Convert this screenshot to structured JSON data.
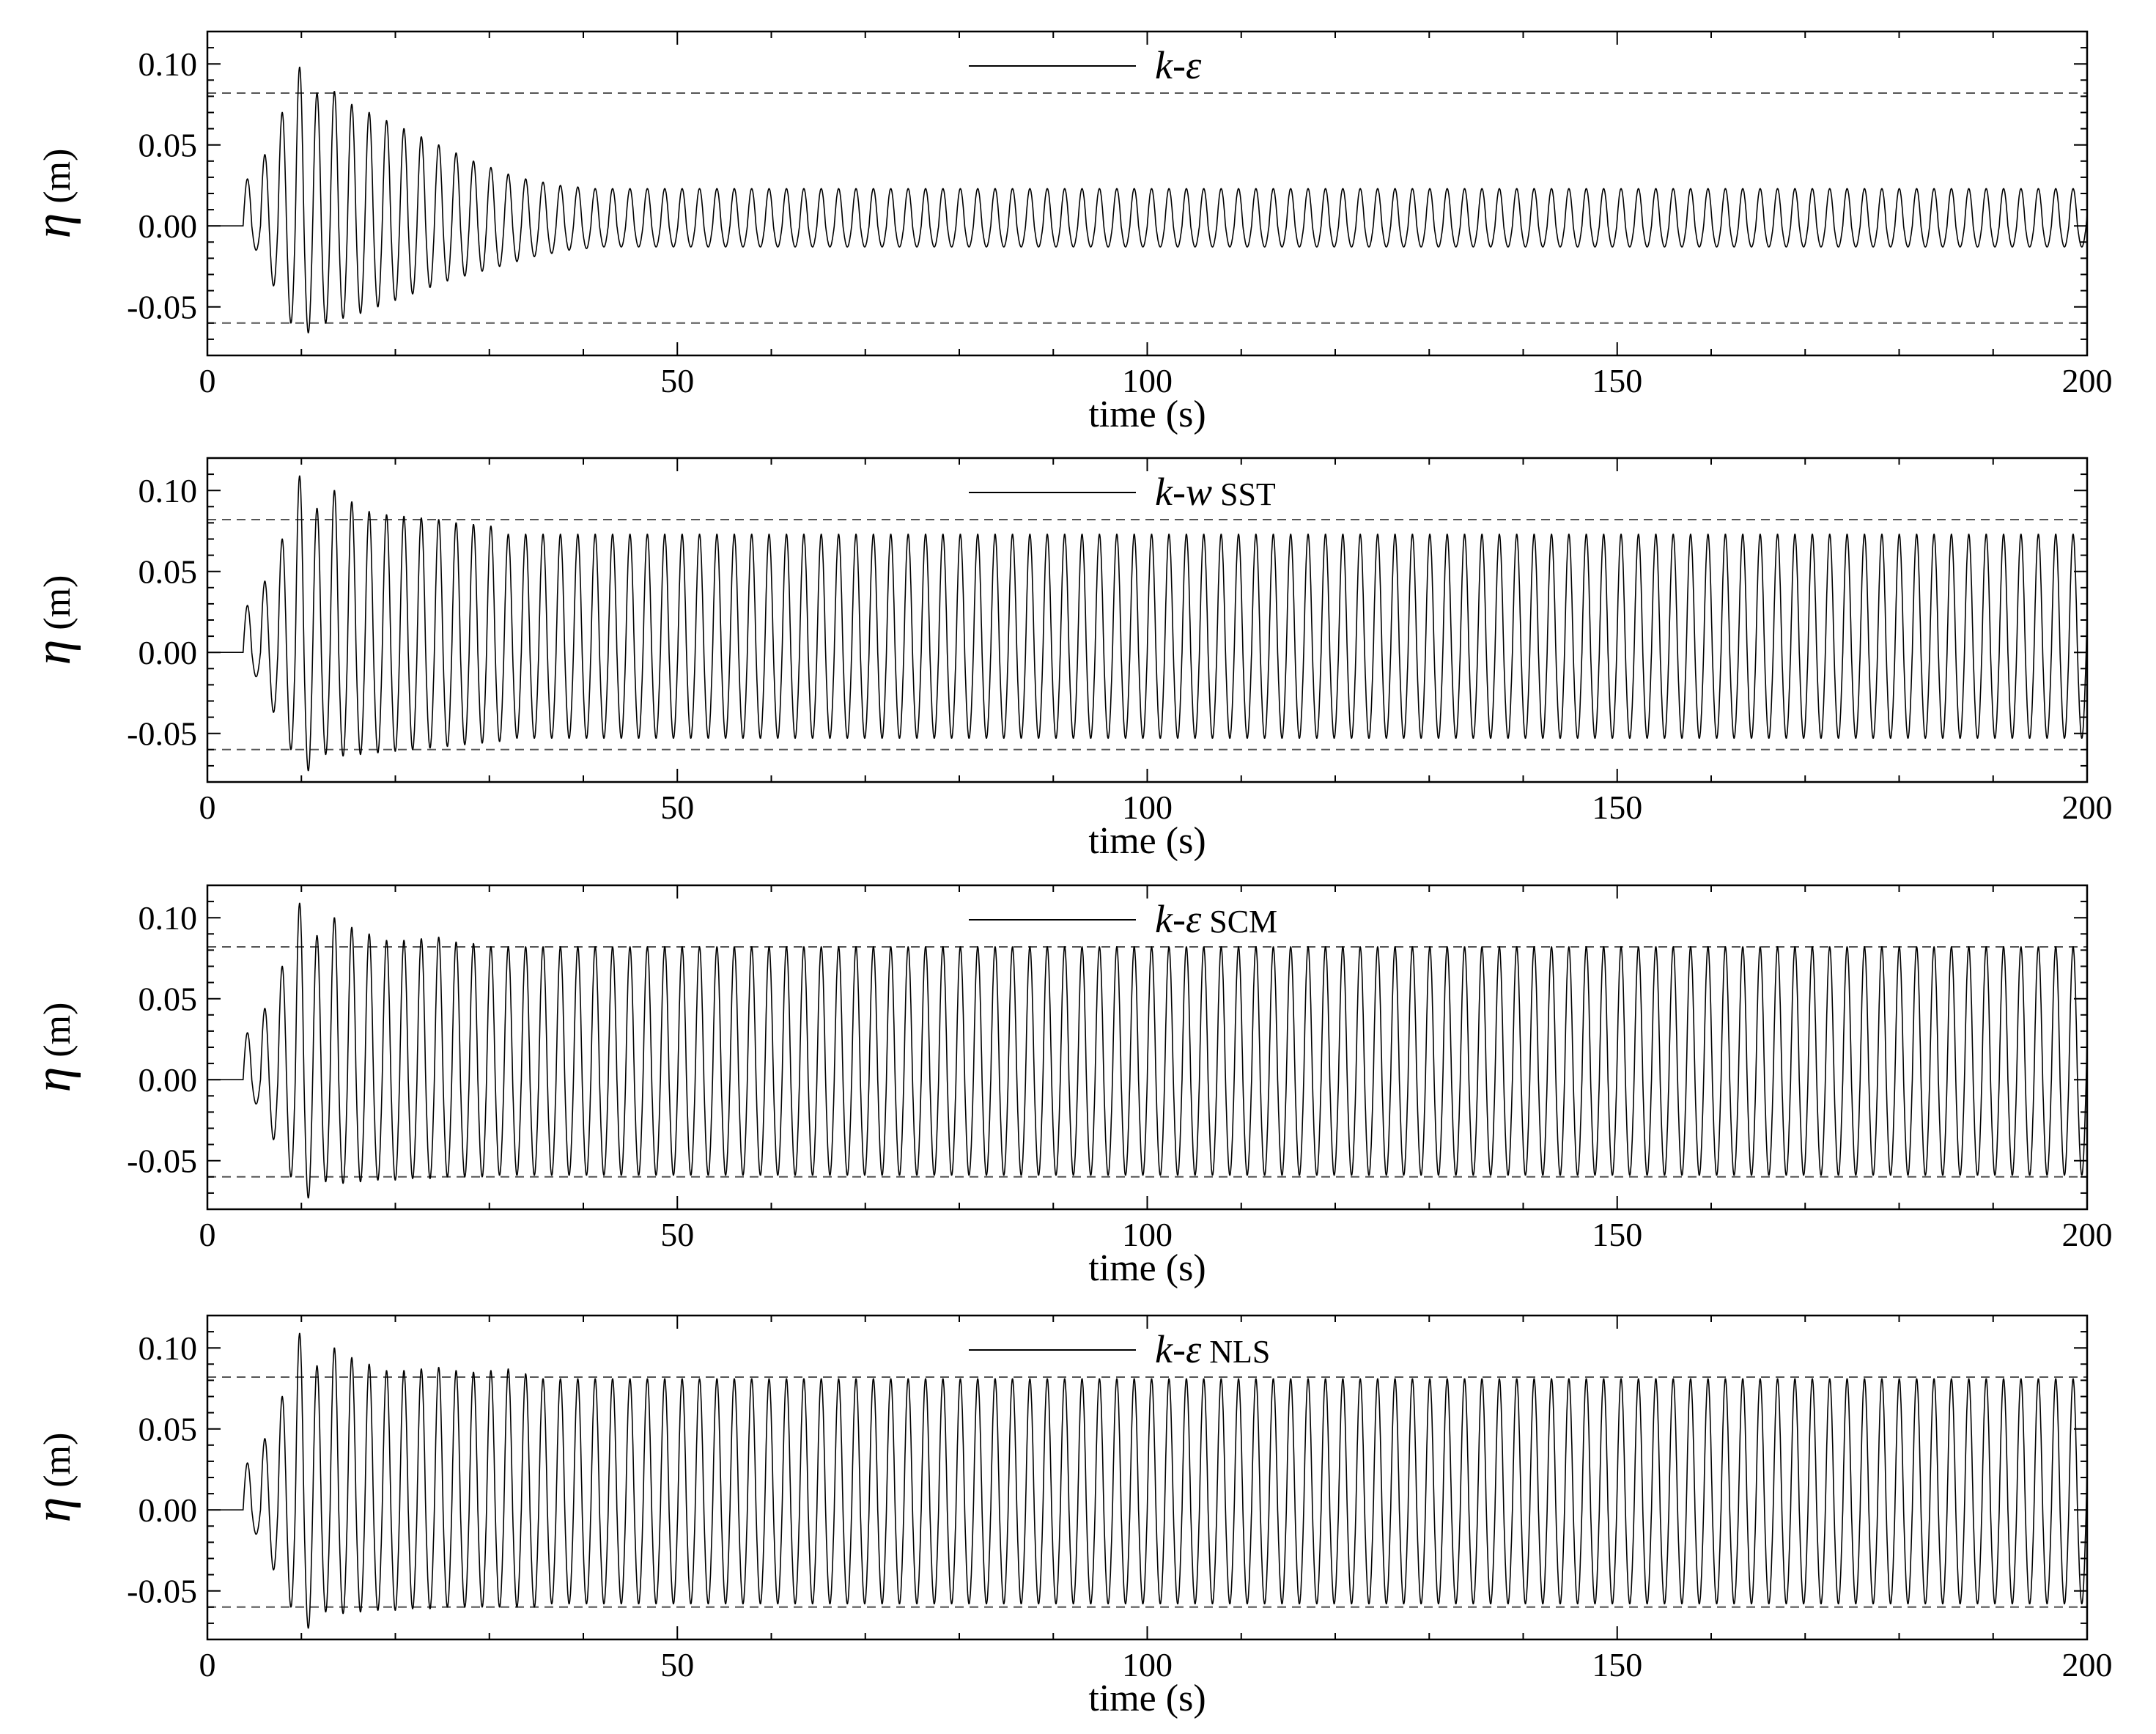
{
  "chart_data": [
    {
      "type": "line",
      "legend": {
        "model": "k-ε",
        "suffix": ""
      },
      "xlabel": "time (s)",
      "ylabel": "η (m)",
      "xlim": [
        0,
        200
      ],
      "ylim": [
        -0.08,
        0.12
      ],
      "xticks": [
        0,
        50,
        100,
        150,
        200
      ],
      "yticks": [
        -0.05,
        0.0,
        0.05,
        0.1
      ],
      "xtick_labels": [
        "0",
        "50",
        "100",
        "150",
        "200"
      ],
      "ytick_labels": [
        "-0.05",
        "0.00",
        "0.05",
        "0.10"
      ],
      "reference_lines": [
        0.082,
        -0.06
      ],
      "series": [
        {
          "period": 1.85,
          "initial_peaks": [
            0.029,
            0.044,
            0.07,
            0.098,
            0.082,
            0.083,
            0.075,
            0.07,
            0.065,
            0.06,
            0.055,
            0.05,
            0.045,
            0.04,
            0.036,
            0.032,
            0.029,
            0.027,
            0.025,
            0.024
          ],
          "initial_troughs": [
            -0.015,
            -0.037,
            -0.06,
            -0.066,
            -0.06,
            -0.057,
            -0.054,
            -0.05,
            -0.046,
            -0.042,
            -0.038,
            -0.034,
            -0.031,
            -0.028,
            -0.025,
            -0.022,
            -0.019,
            -0.017,
            -0.015,
            -0.014
          ],
          "steady_peak": 0.023,
          "steady_trough": -0.013
        }
      ]
    },
    {
      "type": "line",
      "legend": {
        "model": "k-w",
        "suffix": "SST"
      },
      "xlabel": "time (s)",
      "ylabel": "η (m)",
      "xlim": [
        0,
        200
      ],
      "ylim": [
        -0.08,
        0.12
      ],
      "xticks": [
        0,
        50,
        100,
        150,
        200
      ],
      "yticks": [
        -0.05,
        0.0,
        0.05,
        0.1
      ],
      "xtick_labels": [
        "0",
        "50",
        "100",
        "150",
        "200"
      ],
      "ytick_labels": [
        "-0.05",
        "0.00",
        "0.05",
        "0.10"
      ],
      "reference_lines": [
        0.082,
        -0.06
      ],
      "series": [
        {
          "period": 1.85,
          "initial_peaks": [
            0.029,
            0.044,
            0.07,
            0.109,
            0.089,
            0.1,
            0.093,
            0.087,
            0.085,
            0.084,
            0.083,
            0.082,
            0.08,
            0.079,
            0.078
          ],
          "initial_troughs": [
            -0.015,
            -0.037,
            -0.06,
            -0.073,
            -0.063,
            -0.064,
            -0.063,
            -0.062,
            -0.061,
            -0.06,
            -0.059,
            -0.058,
            -0.057,
            -0.056,
            -0.055
          ],
          "steady_peak": 0.073,
          "steady_trough": -0.053
        }
      ]
    },
    {
      "type": "line",
      "legend": {
        "model": "k-ε",
        "suffix": "SCM"
      },
      "xlabel": "time (s)",
      "ylabel": "η (m)",
      "xlim": [
        0,
        200
      ],
      "ylim": [
        -0.08,
        0.12
      ],
      "xticks": [
        0,
        50,
        100,
        150,
        200
      ],
      "yticks": [
        -0.05,
        0.0,
        0.05,
        0.1
      ],
      "xtick_labels": [
        "0",
        "50",
        "100",
        "150",
        "200"
      ],
      "ytick_labels": [
        "-0.05",
        "0.00",
        "0.05",
        "0.10"
      ],
      "reference_lines": [
        0.082,
        -0.06
      ],
      "series": [
        {
          "period": 1.85,
          "initial_peaks": [
            0.029,
            0.044,
            0.07,
            0.109,
            0.089,
            0.1,
            0.094,
            0.09,
            0.086,
            0.086,
            0.087,
            0.088,
            0.085,
            0.084
          ],
          "initial_troughs": [
            -0.015,
            -0.037,
            -0.06,
            -0.073,
            -0.063,
            -0.064,
            -0.063,
            -0.062,
            -0.062,
            -0.061,
            -0.061,
            -0.06,
            -0.06,
            -0.06
          ],
          "steady_peak": 0.082,
          "steady_trough": -0.059
        }
      ]
    },
    {
      "type": "line",
      "legend": {
        "model": "k-ε",
        "suffix": "NLS"
      },
      "xlabel": "time (s)",
      "ylabel": "η (m)",
      "xlim": [
        0,
        200
      ],
      "ylim": [
        -0.08,
        0.12
      ],
      "xticks": [
        0,
        50,
        100,
        150,
        200
      ],
      "yticks": [
        -0.05,
        0.0,
        0.05,
        0.1
      ],
      "xtick_labels": [
        "0",
        "50",
        "100",
        "150",
        "200"
      ],
      "ytick_labels": [
        "-0.05",
        "0.00",
        "0.05",
        "0.10"
      ],
      "reference_lines": [
        0.082,
        -0.06
      ],
      "series": [
        {
          "period": 1.85,
          "initial_peaks": [
            0.029,
            0.044,
            0.07,
            0.109,
            0.089,
            0.1,
            0.094,
            0.09,
            0.086,
            0.086,
            0.087,
            0.088,
            0.086,
            0.085,
            0.086,
            0.087,
            0.084
          ],
          "initial_troughs": [
            -0.015,
            -0.037,
            -0.06,
            -0.073,
            -0.063,
            -0.064,
            -0.063,
            -0.062,
            -0.062,
            -0.061,
            -0.061,
            -0.06,
            -0.06,
            -0.06,
            -0.06,
            -0.06,
            -0.06
          ],
          "steady_peak": 0.081,
          "steady_trough": -0.058
        }
      ]
    }
  ]
}
